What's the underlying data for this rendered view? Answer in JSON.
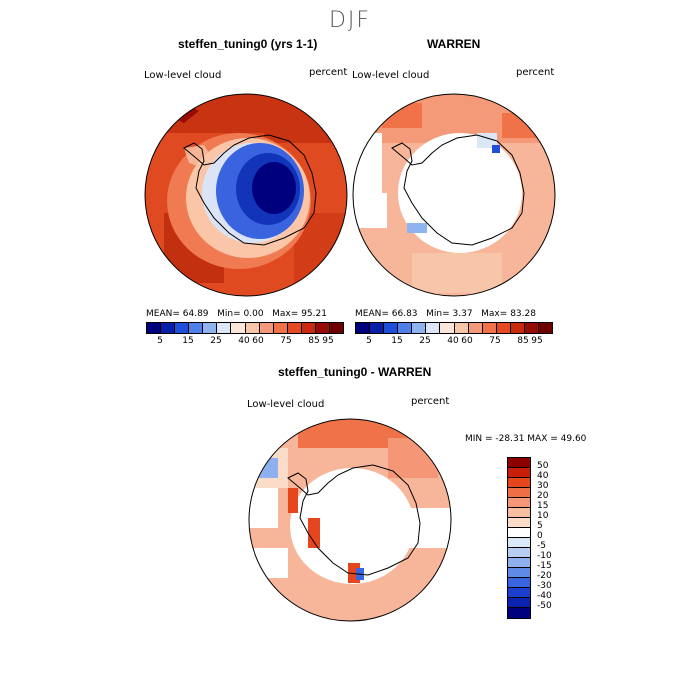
{
  "season": "DJF",
  "panels": [
    {
      "title": "steffen_tuning0 (yrs 1-1)",
      "field": "Low-level cloud",
      "units": "percent",
      "stats": {
        "mean_label": "MEAN=",
        "mean": "64.89",
        "min_label": "Min=",
        "min": "0.00",
        "max_label": "Max=",
        "max": "95.21"
      }
    },
    {
      "title": "WARREN",
      "field": "Low-level cloud",
      "units": "percent",
      "stats": {
        "mean_label": "MEAN=",
        "mean": "66.83",
        "min_label": "Min=",
        "min": "3.37",
        "max_label": "Max=",
        "max": "83.28"
      }
    },
    {
      "title": "steffen_tuning0 - WARREN",
      "field": "Low-level cloud",
      "units": "percent",
      "minmax": "MIN = -28.31 MAX =  49.60"
    }
  ],
  "colorbar_abs": {
    "colors": [
      "#00007f",
      "#0a1fa8",
      "#1f4fd9",
      "#4f7fe8",
      "#8fb3f0",
      "#dbe7f7",
      "#fbe6d9",
      "#f7c6a8",
      "#f59a78",
      "#f07248",
      "#e64a22",
      "#c82a10",
      "#960c05",
      "#6e0000"
    ],
    "labels": [
      "5",
      "15",
      "25",
      "40",
      "60",
      "75",
      "85",
      "95"
    ]
  },
  "colorbar_diff": {
    "colors": [
      "#8c0000",
      "#c81e0a",
      "#e6461e",
      "#f06e46",
      "#f59676",
      "#f7bea3",
      "#fbdcc9",
      "#ffffff",
      "#dbe8f8",
      "#b7cdf2",
      "#8fb0ee",
      "#5f8ae6",
      "#3a63e0",
      "#1c3fd0",
      "#0a22b0",
      "#00007f"
    ],
    "labels": [
      "50",
      "40",
      "30",
      "20",
      "15",
      "10",
      "5",
      "0",
      "-5",
      "-10",
      "-15",
      "-20",
      "-30",
      "-40",
      "-50"
    ]
  }
}
